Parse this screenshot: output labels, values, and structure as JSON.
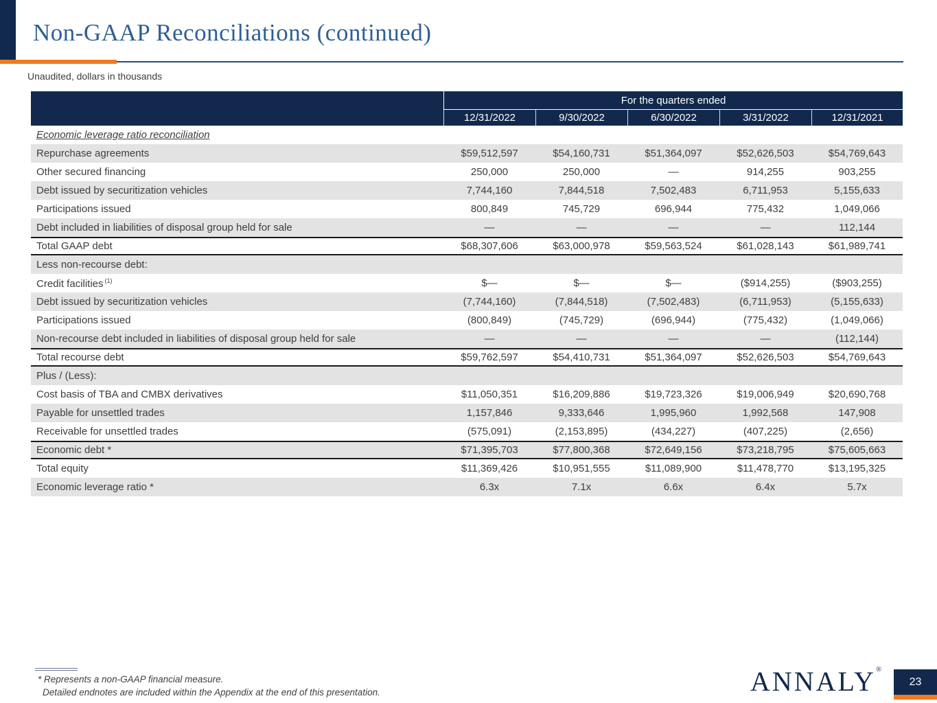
{
  "slide": {
    "title": "Non-GAAP Reconciliations (continued)",
    "subtitle": "Unaudited, dollars in thousands",
    "page_number": "23",
    "logo": "ANNALY",
    "logo_mark": "®"
  },
  "colors": {
    "navy": "#12294d",
    "orange": "#ef7b22",
    "title_blue": "#2f5f93",
    "row_shade": "#e3e3e3",
    "rule_blue": "#1f4e79",
    "text": "#3d3d3d"
  },
  "table": {
    "group_header": "For the quarters ended",
    "columns": [
      "12/31/2022",
      "9/30/2022",
      "6/30/2022",
      "3/31/2022",
      "12/31/2021"
    ],
    "rows": [
      {
        "label": "Economic leverage ratio reconciliation",
        "variant": "heading",
        "shaded": false,
        "values": [
          "",
          "",
          "",
          "",
          ""
        ]
      },
      {
        "label": "Repurchase agreements",
        "shaded": true,
        "values": [
          "$59,512,597",
          "$54,160,731",
          "$51,364,097",
          "$52,626,503",
          "$54,769,643"
        ]
      },
      {
        "label": "Other secured financing",
        "shaded": false,
        "values": [
          "250,000",
          "250,000",
          "—",
          "914,255",
          "903,255"
        ]
      },
      {
        "label": "Debt issued by securitization vehicles",
        "shaded": true,
        "values": [
          "7,744,160",
          "7,844,518",
          "7,502,483",
          "6,711,953",
          "5,155,633"
        ]
      },
      {
        "label": "Participations issued",
        "shaded": false,
        "values": [
          "800,849",
          "745,729",
          "696,944",
          "775,432",
          "1,049,066"
        ]
      },
      {
        "label": "Debt included in liabilities of disposal group held for sale",
        "shaded": true,
        "values": [
          "—",
          "—",
          "—",
          "—",
          "112,144"
        ]
      },
      {
        "label": "Total GAAP debt",
        "variant": "total",
        "shaded": false,
        "values": [
          "$68,307,606",
          "$63,000,978",
          "$59,563,524",
          "$61,028,143",
          "$61,989,741"
        ]
      },
      {
        "label": "Less non-recourse debt:",
        "shaded": true,
        "values": [
          "",
          "",
          "",
          "",
          ""
        ]
      },
      {
        "label": "Credit facilities",
        "sup": "(1)",
        "shaded": false,
        "values": [
          "$—",
          "$—",
          "$—",
          "($914,255)",
          "($903,255)"
        ]
      },
      {
        "label": "Debt issued by securitization vehicles",
        "shaded": true,
        "values": [
          "(7,744,160)",
          "(7,844,518)",
          "(7,502,483)",
          "(6,711,953)",
          "(5,155,633)"
        ]
      },
      {
        "label": "Participations issued",
        "shaded": false,
        "values": [
          "(800,849)",
          "(745,729)",
          "(696,944)",
          "(775,432)",
          "(1,049,066)"
        ]
      },
      {
        "label": "Non-recourse debt included in liabilities of disposal group held for sale",
        "shaded": true,
        "values": [
          "—",
          "—",
          "—",
          "—",
          "(112,144)"
        ]
      },
      {
        "label": "Total recourse debt",
        "variant": "total",
        "shaded": false,
        "values": [
          "$59,762,597",
          "$54,410,731",
          "$51,364,097",
          "$52,626,503",
          "$54,769,643"
        ]
      },
      {
        "label": "Plus / (Less):",
        "shaded": true,
        "values": [
          "",
          "",
          "",
          "",
          ""
        ]
      },
      {
        "label": "Cost basis of TBA and CMBX derivatives",
        "shaded": false,
        "values": [
          "$11,050,351",
          "$16,209,886",
          "$19,723,326",
          "$19,006,949",
          "$20,690,768"
        ]
      },
      {
        "label": "Payable for unsettled trades",
        "shaded": true,
        "values": [
          "1,157,846",
          "9,333,646",
          "1,995,960",
          "1,992,568",
          "147,908"
        ]
      },
      {
        "label": "Receivable for unsettled trades",
        "shaded": false,
        "values": [
          "(575,091)",
          "(2,153,895)",
          "(434,227)",
          "(407,225)",
          "(2,656)"
        ]
      },
      {
        "label": "Economic debt *",
        "variant": "total",
        "shaded": true,
        "values": [
          "$71,395,703",
          "$77,800,368",
          "$72,649,156",
          "$73,218,795",
          "$75,605,663"
        ]
      },
      {
        "label": "Total equity",
        "shaded": false,
        "values": [
          "$11,369,426",
          "$10,951,555",
          "$11,089,900",
          "$11,478,770",
          "$13,195,325"
        ]
      },
      {
        "label": "Economic leverage ratio *",
        "shaded": true,
        "values": [
          "6.3x",
          "7.1x",
          "6.6x",
          "6.4x",
          "5.7x"
        ]
      }
    ]
  },
  "footnotes": [
    "* Represents a non-GAAP financial measure.",
    "Detailed endnotes are included within the Appendix at the end of this presentation."
  ]
}
